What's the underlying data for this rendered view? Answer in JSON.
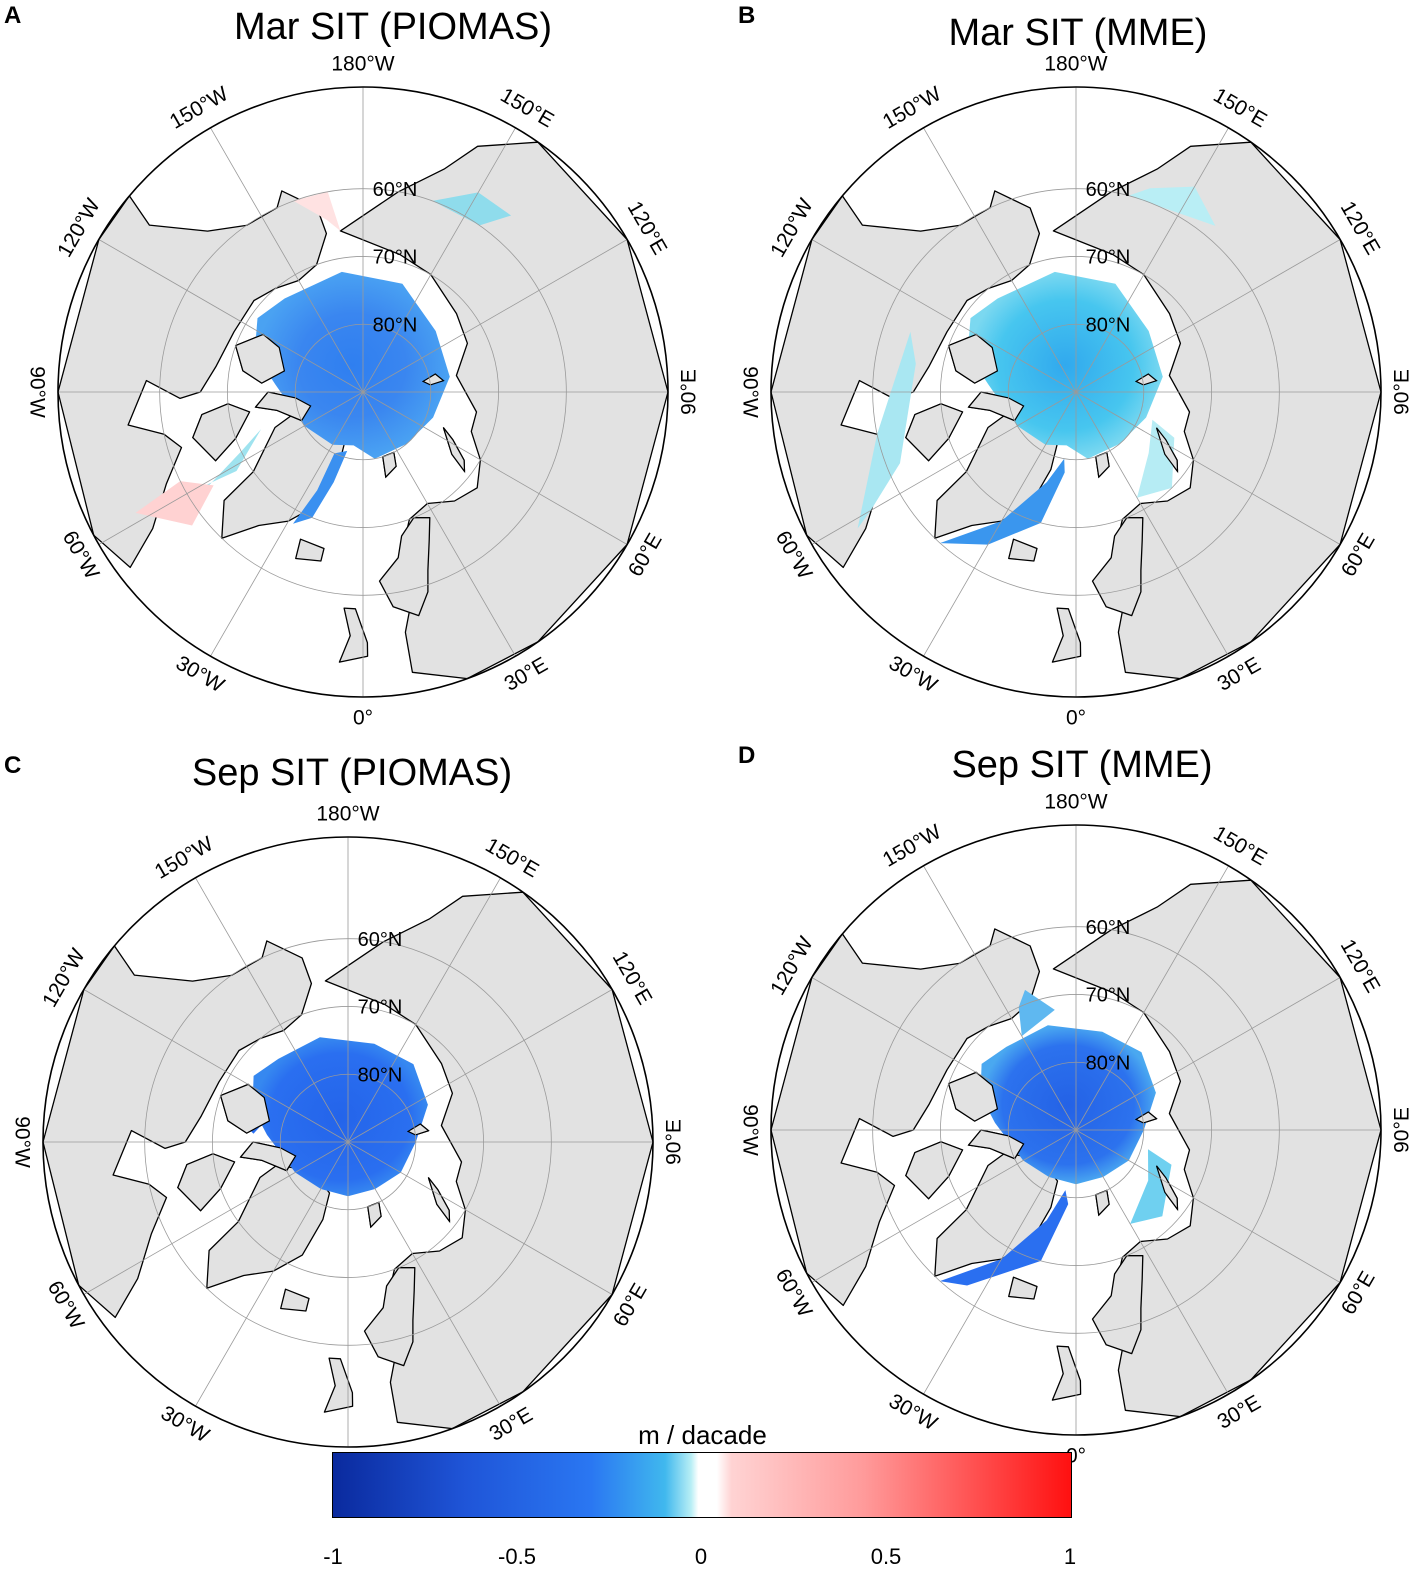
{
  "panels": [
    {
      "id": "A",
      "title": "Mar SIT (PIOMAS)"
    },
    {
      "id": "B",
      "title": "Mar SIT (MME)"
    },
    {
      "id": "C",
      "title": "Sep SIT (PIOMAS)"
    },
    {
      "id": "D",
      "title": "Sep SIT (MME)"
    }
  ],
  "graticule": {
    "lon_labels": [
      "180°W",
      "150°E",
      "120°E",
      "90°E",
      "60°E",
      "30°E",
      "0°",
      "30°W",
      "60°W",
      "90°W",
      "120°W",
      "150°W"
    ],
    "lat_labels": [
      "60°N",
      "70°N",
      "80°N"
    ]
  },
  "colorbar": {
    "title": "m / dacade",
    "ticks": [
      "-1",
      "-0.5",
      "0",
      "0.5",
      "1"
    ],
    "range": [
      -1,
      1
    ],
    "colors": {
      "min": "#0a2a9e",
      "mid_neg": "#2a77f2",
      "near_zero_neg": "#b7eef5",
      "zero": "#ffffff",
      "near_zero_pos": "#ffd3d3",
      "max": "#ff1010"
    }
  },
  "colors": {
    "land": "#e2e2e2",
    "ocean": "#ffffff",
    "grid": "#9a9a9a",
    "coast": "#000000"
  }
}
